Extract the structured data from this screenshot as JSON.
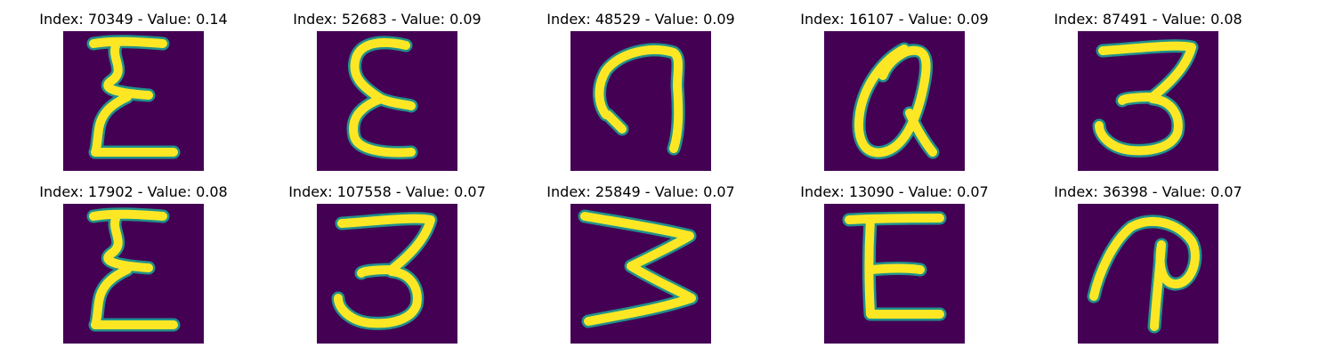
{
  "panels": [
    {
      "title": "Index: 70349 - Value: 0.14",
      "glyph": "xi-like"
    },
    {
      "title": "Index: 52683 - Value: 0.09",
      "glyph": "epsilon-like"
    },
    {
      "title": "Index: 48529 - Value: 0.09",
      "glyph": "hook-like"
    },
    {
      "title": "Index: 16107 - Value: 0.09",
      "glyph": "loop-a-like"
    },
    {
      "title": "Index: 87491 - Value: 0.08",
      "glyph": "three-like"
    },
    {
      "title": "Index: 17902 - Value: 0.08",
      "glyph": "xi-like"
    },
    {
      "title": "Index: 107558 - Value: 0.07",
      "glyph": "three-like"
    },
    {
      "title": "Index: 25849 - Value: 0.07",
      "glyph": "sideways-w-like"
    },
    {
      "title": "Index: 13090 - Value: 0.07",
      "glyph": "e-like"
    },
    {
      "title": "Index: 36398 - Value: 0.07",
      "glyph": "p-like"
    }
  ],
  "colors": {
    "background": "#440154",
    "stroke_mid": "#21918c",
    "stroke_core": "#fde725"
  }
}
